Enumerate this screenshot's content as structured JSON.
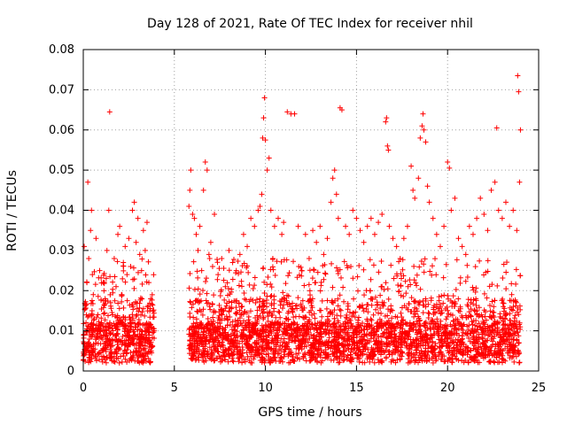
{
  "chart_data": {
    "type": "scatter",
    "title": "Day 128 of 2021, Rate Of TEC Index for receiver nhil",
    "xlabel": "GPS time / hours",
    "ylabel": "ROTI / TECUs",
    "xlim": [
      0,
      25
    ],
    "ylim": [
      0,
      0.08
    ],
    "xticks": [
      0,
      5,
      10,
      15,
      20,
      25
    ],
    "yticks": [
      0,
      0.01,
      0.02,
      0.03,
      0.04,
      0.05,
      0.06,
      0.07,
      0.08
    ],
    "xtick_labels": [
      "0",
      "5",
      "10",
      "15",
      "20",
      "25"
    ],
    "ytick_labels": [
      "0",
      "0.01",
      "0.02",
      "0.03",
      "0.04",
      "0.05",
      "0.06",
      "0.07",
      "0.08"
    ],
    "grid": true,
    "marker": "+",
    "color": "#ff0000",
    "series": [
      {
        "name": "ROTI",
        "points": [
          [
            0.05,
            0.031
          ],
          [
            0.1,
            0.0165
          ],
          [
            0.15,
            0.012
          ],
          [
            0.2,
            0.022
          ],
          [
            0.25,
            0.047
          ],
          [
            0.3,
            0.028
          ],
          [
            0.35,
            0.009
          ],
          [
            0.4,
            0.035
          ],
          [
            0.45,
            0.04
          ],
          [
            0.5,
            0.024
          ],
          [
            0.55,
            0.019
          ],
          [
            0.6,
            0.013
          ],
          [
            0.7,
            0.033
          ],
          [
            0.8,
            0.014
          ],
          [
            0.9,
            0.025
          ],
          [
            1.0,
            0.012
          ],
          [
            1.1,
            0.022
          ],
          [
            1.2,
            0.018
          ],
          [
            1.3,
            0.03
          ],
          [
            1.4,
            0.04
          ],
          [
            1.45,
            0.0645
          ],
          [
            1.5,
            0.017
          ],
          [
            1.6,
            0.014
          ],
          [
            1.7,
            0.028
          ],
          [
            1.8,
            0.021
          ],
          [
            1.9,
            0.034
          ],
          [
            2.0,
            0.036
          ],
          [
            2.1,
            0.019
          ],
          [
            2.2,
            0.027
          ],
          [
            2.3,
            0.031
          ],
          [
            2.4,
            0.024
          ],
          [
            2.5,
            0.033
          ],
          [
            2.6,
            0.026
          ],
          [
            2.7,
            0.04
          ],
          [
            2.8,
            0.042
          ],
          [
            2.9,
            0.032
          ],
          [
            3.0,
            0.038
          ],
          [
            3.1,
            0.029
          ],
          [
            3.2,
            0.025
          ],
          [
            3.3,
            0.035
          ],
          [
            3.4,
            0.03
          ],
          [
            3.5,
            0.037
          ],
          [
            3.6,
            0.022
          ],
          [
            3.7,
            0.018
          ],
          [
            5.8,
            0.041
          ],
          [
            5.85,
            0.045
          ],
          [
            5.9,
            0.05
          ],
          [
            6.0,
            0.039
          ],
          [
            6.1,
            0.038
          ],
          [
            6.2,
            0.034
          ],
          [
            6.3,
            0.03
          ],
          [
            6.4,
            0.036
          ],
          [
            6.5,
            0.025
          ],
          [
            6.6,
            0.045
          ],
          [
            6.7,
            0.052
          ],
          [
            6.8,
            0.05
          ],
          [
            6.9,
            0.029
          ],
          [
            7.0,
            0.032
          ],
          [
            7.1,
            0.026
          ],
          [
            7.2,
            0.039
          ],
          [
            7.4,
            0.024
          ],
          [
            7.6,
            0.028
          ],
          [
            7.8,
            0.021
          ],
          [
            8.0,
            0.03
          ],
          [
            8.2,
            0.027
          ],
          [
            8.4,
            0.025
          ],
          [
            8.6,
            0.029
          ],
          [
            8.8,
            0.034
          ],
          [
            9.0,
            0.031
          ],
          [
            9.2,
            0.038
          ],
          [
            9.4,
            0.036
          ],
          [
            9.6,
            0.04
          ],
          [
            9.7,
            0.041
          ],
          [
            9.8,
            0.044
          ],
          [
            9.85,
            0.058
          ],
          [
            9.9,
            0.063
          ],
          [
            9.95,
            0.068
          ],
          [
            10.0,
            0.0575
          ],
          [
            10.1,
            0.05
          ],
          [
            10.2,
            0.053
          ],
          [
            10.3,
            0.04
          ],
          [
            10.5,
            0.036
          ],
          [
            10.7,
            0.038
          ],
          [
            10.9,
            0.034
          ],
          [
            11.0,
            0.037
          ],
          [
            11.2,
            0.0645
          ],
          [
            11.4,
            0.064
          ],
          [
            11.6,
            0.064
          ],
          [
            11.8,
            0.036
          ],
          [
            12.0,
            0.025
          ],
          [
            12.2,
            0.034
          ],
          [
            12.4,
            0.028
          ],
          [
            12.6,
            0.035
          ],
          [
            12.8,
            0.032
          ],
          [
            13.0,
            0.036
          ],
          [
            13.2,
            0.029
          ],
          [
            13.4,
            0.033
          ],
          [
            13.6,
            0.042
          ],
          [
            13.7,
            0.048
          ],
          [
            13.8,
            0.05
          ],
          [
            13.9,
            0.044
          ],
          [
            14.0,
            0.038
          ],
          [
            14.1,
            0.0655
          ],
          [
            14.2,
            0.065
          ],
          [
            14.4,
            0.036
          ],
          [
            14.6,
            0.034
          ],
          [
            14.8,
            0.04
          ],
          [
            15.0,
            0.038
          ],
          [
            15.2,
            0.035
          ],
          [
            15.4,
            0.032
          ],
          [
            15.6,
            0.036
          ],
          [
            15.8,
            0.038
          ],
          [
            16.0,
            0.034
          ],
          [
            16.2,
            0.037
          ],
          [
            16.4,
            0.039
          ],
          [
            16.6,
            0.062
          ],
          [
            16.65,
            0.063
          ],
          [
            16.7,
            0.056
          ],
          [
            16.75,
            0.055
          ],
          [
            16.8,
            0.036
          ],
          [
            17.0,
            0.033
          ],
          [
            17.2,
            0.031
          ],
          [
            17.4,
            0.028
          ],
          [
            17.6,
            0.033
          ],
          [
            17.8,
            0.036
          ],
          [
            18.0,
            0.051
          ],
          [
            18.1,
            0.045
          ],
          [
            18.2,
            0.043
          ],
          [
            18.4,
            0.048
          ],
          [
            18.5,
            0.058
          ],
          [
            18.6,
            0.061
          ],
          [
            18.65,
            0.064
          ],
          [
            18.7,
            0.06
          ],
          [
            18.8,
            0.057
          ],
          [
            18.9,
            0.046
          ],
          [
            19.0,
            0.042
          ],
          [
            19.2,
            0.038
          ],
          [
            19.4,
            0.034
          ],
          [
            19.6,
            0.031
          ],
          [
            19.8,
            0.036
          ],
          [
            20.0,
            0.052
          ],
          [
            20.1,
            0.0505
          ],
          [
            20.2,
            0.04
          ],
          [
            20.4,
            0.043
          ],
          [
            20.6,
            0.033
          ],
          [
            20.8,
            0.031
          ],
          [
            21.0,
            0.029
          ],
          [
            21.2,
            0.036
          ],
          [
            21.4,
            0.034
          ],
          [
            21.6,
            0.038
          ],
          [
            21.8,
            0.043
          ],
          [
            22.0,
            0.039
          ],
          [
            22.2,
            0.035
          ],
          [
            22.4,
            0.045
          ],
          [
            22.6,
            0.047
          ],
          [
            22.7,
            0.0605
          ],
          [
            22.8,
            0.04
          ],
          [
            23.0,
            0.038
          ],
          [
            23.2,
            0.042
          ],
          [
            23.4,
            0.036
          ],
          [
            23.6,
            0.04
          ],
          [
            23.8,
            0.035
          ],
          [
            23.85,
            0.0735
          ],
          [
            23.9,
            0.0695
          ],
          [
            23.95,
            0.047
          ],
          [
            24.0,
            0.06
          ]
        ]
      }
    ],
    "band_segments": [
      {
        "x_start": 0.0,
        "x_end": 3.9
      },
      {
        "x_start": 5.8,
        "x_end": 24.0
      }
    ]
  }
}
